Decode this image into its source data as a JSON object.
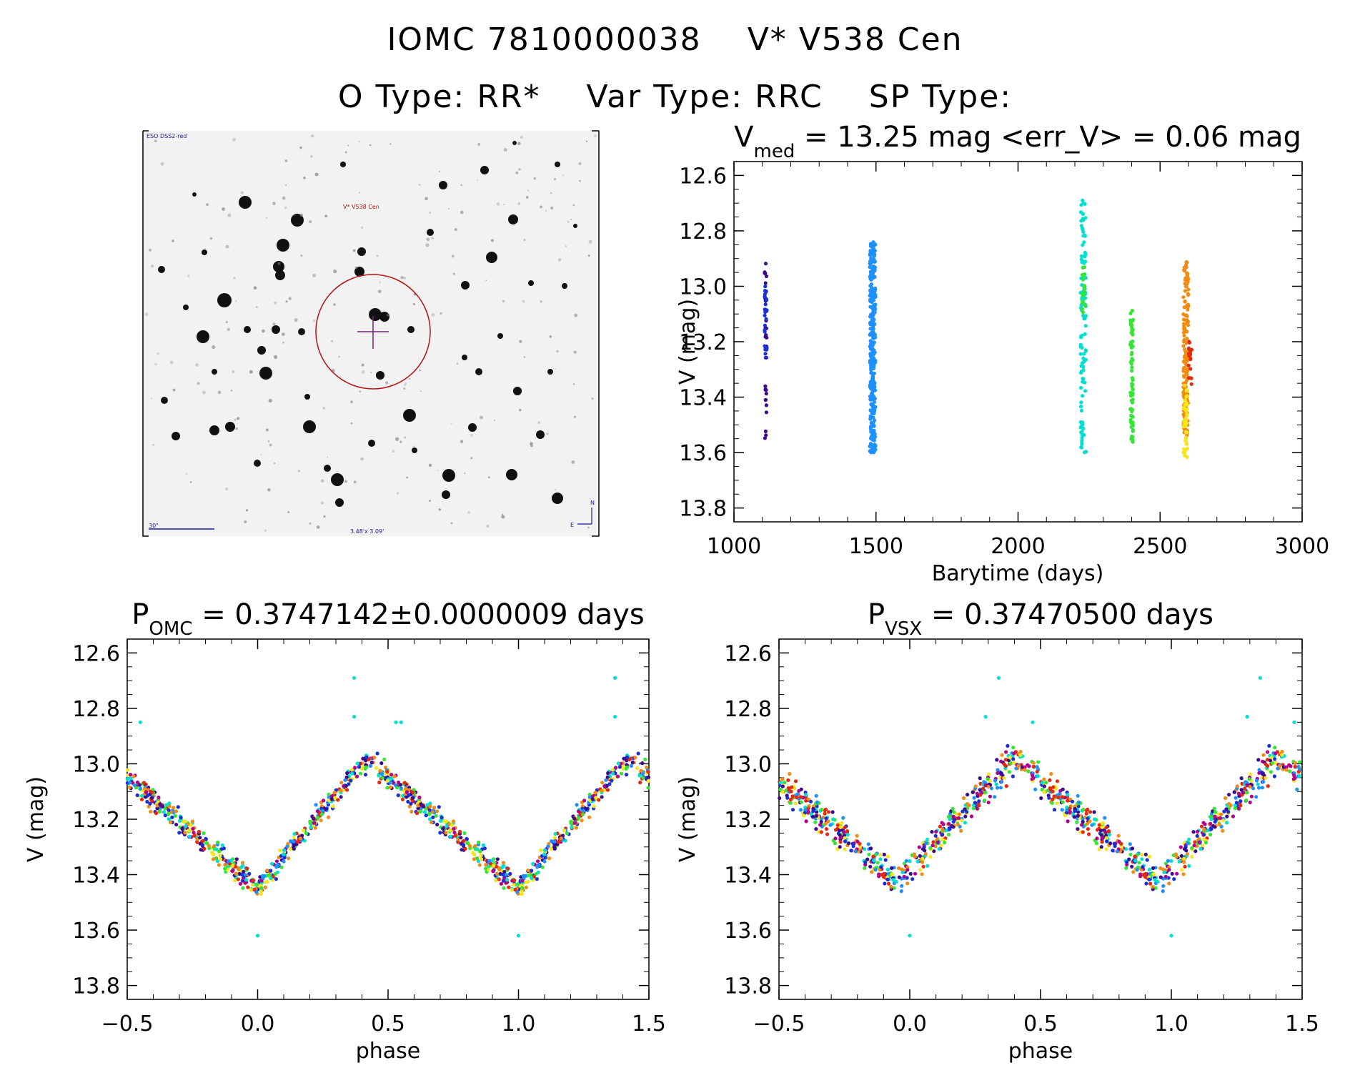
{
  "header": {
    "object_id": "IOMC 7810000038",
    "star_name": "V* V538 Cen",
    "otype": "O Type: RR*",
    "vartype": "Var Type: RRC",
    "sptype": "SP Type:"
  },
  "finder": {
    "survey_label": "ESO DSS2-red",
    "target_label": "V* V538 Cen",
    "scale_label": "30\"",
    "size_label": "3.48'x 3.09'",
    "north": "N",
    "east": "E"
  },
  "colors": {
    "palette": [
      "#3c0a8a",
      "#1a2fd6",
      "#1e90ff",
      "#00e0d0",
      "#33e633",
      "#f5e61e",
      "#f08c14",
      "#e8280a",
      "#b4008c"
    ],
    "circle": "#b41414",
    "cross": "#7a1a7a"
  },
  "chart_data": [
    {
      "id": "lightcurve",
      "type": "scatter",
      "title_main": "V",
      "title_sub": "med",
      "title_rest": " = 13.25 mag <err_V> = 0.06 mag",
      "xlabel": "Barytime (days)",
      "ylabel": "V (mag)",
      "xlim": [
        1000,
        3000
      ],
      "ylim": [
        13.85,
        12.55
      ],
      "y_inverted": true,
      "xticks": [
        "1000",
        "1500",
        "2000",
        "2500",
        "3000"
      ],
      "yticks": [
        "12.6",
        "12.8",
        "13.0",
        "13.2",
        "13.4",
        "13.6",
        "13.8"
      ],
      "series": [
        {
          "color": "#3c0a8a",
          "x_range": [
            1108,
            1115
          ],
          "v_range": [
            12.91,
            13.58
          ],
          "count": 30
        },
        {
          "color": "#1a2fd6",
          "x_range": [
            1108,
            1116
          ],
          "v_range": [
            13.0,
            13.28
          ],
          "count": 25
        },
        {
          "color": "#1e90ff",
          "x_range": [
            1478,
            1498
          ],
          "v_range": [
            12.84,
            13.6
          ],
          "count": 320
        },
        {
          "color": "#00e0d0",
          "x_range": [
            2220,
            2240
          ],
          "v_range": [
            12.69,
            13.61
          ],
          "count": 110
        },
        {
          "color": "#33e633",
          "x_range": [
            2225,
            2238
          ],
          "v_range": [
            12.9,
            13.1
          ],
          "count": 20
        },
        {
          "color": "#33e633",
          "x_range": [
            2395,
            2405
          ],
          "v_range": [
            13.08,
            13.57
          ],
          "count": 70
        },
        {
          "color": "#f08c14",
          "x_range": [
            2582,
            2600
          ],
          "v_range": [
            12.91,
            13.54
          ],
          "count": 160
        },
        {
          "color": "#f5e61e",
          "x_range": [
            2582,
            2596
          ],
          "v_range": [
            13.35,
            13.62
          ],
          "count": 40
        },
        {
          "color": "#e8280a",
          "x_range": [
            2600,
            2612
          ],
          "v_range": [
            13.18,
            13.36
          ],
          "count": 20
        }
      ]
    },
    {
      "id": "phase_omc",
      "type": "scatter",
      "title_main": "P",
      "title_sub": "OMC",
      "title_rest": " = 0.3747142±0.0000009 days",
      "xlabel": "phase",
      "ylabel": "V (mag)",
      "xlim": [
        -0.5,
        1.5
      ],
      "ylim": [
        13.85,
        12.55
      ],
      "y_inverted": true,
      "xticks": [
        "−0.5",
        "0.0",
        "0.5",
        "1.0",
        "1.5"
      ],
      "yticks": [
        "12.6",
        "12.8",
        "13.0",
        "13.2",
        "13.4",
        "13.6",
        "13.8"
      ],
      "curve": {
        "max_phase": 0.42,
        "min_phase": 0.0,
        "v_bright": 12.98,
        "v_faint": 13.45,
        "scatter": 0.06
      },
      "outliers": [
        [
          -0.45,
          12.85
        ],
        [
          0.37,
          12.69
        ],
        [
          0.53,
          12.85
        ],
        [
          0.37,
          12.83
        ],
        [
          0.0,
          13.62
        ]
      ]
    },
    {
      "id": "phase_vsx",
      "type": "scatter",
      "title_main": "P",
      "title_sub": "VSX",
      "title_rest": " = 0.37470500 days",
      "xlabel": "phase",
      "ylabel": "V (mag)",
      "xlim": [
        -0.5,
        1.5
      ],
      "ylim": [
        13.85,
        12.55
      ],
      "y_inverted": true,
      "xticks": [
        "−0.5",
        "0.0",
        "0.5",
        "1.0",
        "1.5"
      ],
      "yticks": [
        "12.6",
        "12.8",
        "13.0",
        "13.2",
        "13.4",
        "13.6",
        "13.8"
      ],
      "curve": {
        "max_phase": 0.4,
        "min_phase": -0.05,
        "v_bright": 12.98,
        "v_faint": 13.43,
        "scatter": 0.08
      },
      "outliers": [
        [
          0.34,
          12.69
        ],
        [
          0.29,
          12.83
        ],
        [
          0.47,
          12.85
        ],
        [
          0.0,
          13.62
        ]
      ]
    }
  ]
}
